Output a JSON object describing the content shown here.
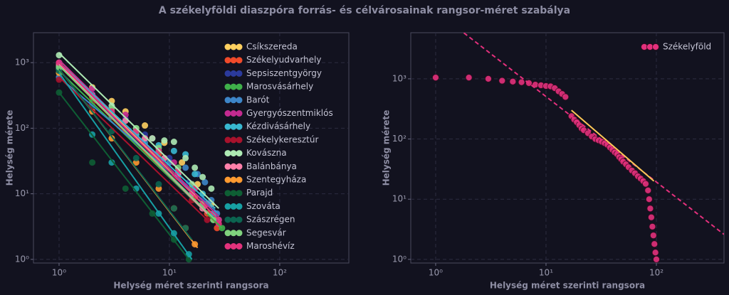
{
  "title": "A székelyföldi diaszpóra forrás- és célvárosainak rangsor-méret szabálya",
  "chart_data": [
    {
      "type": "scatter",
      "xlabel": "Helység méret szerinti rangsora",
      "ylabel": "Helység mérete",
      "log_x": true,
      "log_y": true,
      "grid": true,
      "legend": "upper right",
      "xlim": [
        0.586,
        423
      ],
      "ylim": [
        0.88,
        2860
      ],
      "xticks": [
        {
          "value": 1,
          "label": "10⁰"
        },
        {
          "value": 10,
          "label": "10¹"
        },
        {
          "value": 100,
          "label": "10²"
        }
      ],
      "yticks": [
        {
          "value": 1,
          "label": "10⁰"
        },
        {
          "value": 10,
          "label": "10¹"
        },
        {
          "value": 100,
          "label": "10²"
        },
        {
          "value": 1000,
          "label": "10³"
        }
      ],
      "series": [
        {
          "name": "Csíkszereda",
          "color": "#ffd060",
          "x": [
            1,
            2,
            3,
            4,
            6,
            9,
            13,
            18,
            24,
            28
          ],
          "values": [
            950,
            420,
            260,
            180,
            110,
            60,
            30,
            14,
            7,
            4
          ],
          "fit": {
            "x": [
              1,
              28
            ],
            "y": [
              1100,
              4
            ]
          }
        },
        {
          "name": "Székelyudvarhely",
          "color": "#f04a2a",
          "x": [
            1,
            2,
            3,
            5,
            8,
            12,
            17,
            22,
            27
          ],
          "values": [
            800,
            300,
            170,
            80,
            40,
            18,
            9,
            5,
            3
          ],
          "fit": {
            "x": [
              1,
              27
            ],
            "y": [
              900,
              3.5
            ]
          }
        },
        {
          "name": "Sepsiszentgyörgy",
          "color": "#2b3a9c",
          "x": [
            1,
            2,
            4,
            6,
            10,
            15,
            20,
            26
          ],
          "values": [
            900,
            330,
            140,
            80,
            35,
            15,
            8,
            4
          ],
          "fit": {
            "x": [
              1,
              26
            ],
            "y": [
              950,
              4
            ]
          }
        },
        {
          "name": "Marosvásárhely",
          "color": "#3fb04a",
          "x": [
            1,
            2,
            3,
            5,
            8,
            12,
            16,
            20,
            25,
            30
          ],
          "values": [
            700,
            250,
            160,
            85,
            45,
            22,
            12,
            7,
            4,
            3
          ],
          "fit": {
            "x": [
              1,
              30
            ],
            "y": [
              750,
              3
            ]
          }
        },
        {
          "name": "Barót",
          "color": "#3d86c8",
          "x": [
            1,
            3,
            6,
            10,
            14,
            18,
            21,
            24,
            27
          ],
          "values": [
            600,
            150,
            60,
            30,
            25,
            20,
            15,
            8,
            5
          ],
          "fit": {
            "x": [
              1,
              28
            ],
            "y": [
              600,
              5
            ]
          }
        },
        {
          "name": "Gyergyószentmiklós",
          "color": "#c42a90",
          "x": [
            1,
            2,
            4,
            7,
            11,
            16,
            22,
            28
          ],
          "values": [
            1000,
            400,
            160,
            70,
            30,
            14,
            7,
            4
          ],
          "fit": {
            "x": [
              1,
              28
            ],
            "y": [
              1100,
              4.5
            ]
          }
        },
        {
          "name": "Kézdivásárhely",
          "color": "#38b8d0",
          "x": [
            1,
            3,
            5,
            8,
            11,
            14,
            17,
            20,
            25
          ],
          "values": [
            850,
            160,
            80,
            55,
            45,
            40,
            20,
            10,
            5
          ],
          "fit": {
            "x": [
              1,
              26
            ],
            "y": [
              1000,
              6
            ]
          }
        },
        {
          "name": "Székelykeresztúr",
          "color": "#a8122c",
          "x": [
            1,
            2,
            4,
            7,
            11,
            16,
            22
          ],
          "values": [
            550,
            230,
            90,
            40,
            18,
            8,
            4
          ],
          "fit": {
            "x": [
              1,
              22
            ],
            "y": [
              600,
              4
            ]
          }
        },
        {
          "name": "Kovászna",
          "color": "#aeeab4",
          "x": [
            1,
            3,
            5,
            7,
            9,
            11,
            14,
            17,
            20,
            24
          ],
          "values": [
            1300,
            220,
            100,
            70,
            65,
            62,
            35,
            25,
            18,
            12
          ],
          "fit": {
            "x": [
              1,
              28
            ],
            "y": [
              1400,
              6
            ]
          }
        },
        {
          "name": "Balánbánya",
          "color": "#ff80aa",
          "x": [
            1,
            2,
            4,
            6,
            9,
            12,
            16,
            20
          ],
          "values": [
            900,
            320,
            130,
            70,
            35,
            20,
            10,
            6
          ],
          "fit": {
            "x": [
              1,
              22
            ],
            "y": [
              950,
              5
            ]
          }
        },
        {
          "name": "Szentegyháza",
          "color": "#ff9a30",
          "x": [
            1,
            2,
            3,
            5,
            8,
            11,
            14,
            17
          ],
          "values": [
            700,
            180,
            70,
            30,
            12,
            6,
            3,
            1.7
          ],
          "fit": {
            "x": [
              1,
              18
            ],
            "y": [
              800,
              1.5
            ]
          }
        },
        {
          "name": "Parajd",
          "color": "#0e5e34",
          "x": [
            1,
            2,
            4,
            7,
            11,
            15
          ],
          "values": [
            350,
            30,
            12,
            5,
            2,
            1
          ],
          "fit": {
            "x": [
              1,
              15
            ],
            "y": [
              350,
              1
            ]
          }
        },
        {
          "name": "Szováta",
          "color": "#17a0a4",
          "x": [
            1,
            2,
            3,
            5,
            8,
            11,
            15
          ],
          "values": [
            800,
            80,
            30,
            12,
            5,
            2.5,
            1.2
          ],
          "fit": {
            "x": [
              1,
              16
            ],
            "y": [
              700,
              1
            ]
          }
        },
        {
          "name": "Szászrégen",
          "color": "#0b6450",
          "x": [
            1,
            2,
            3,
            5,
            8,
            11,
            14
          ],
          "values": [
            750,
            220,
            90,
            35,
            14,
            6,
            3
          ],
          "fit": {
            "x": [
              1,
              16
            ],
            "y": [
              800,
              2
            ]
          }
        },
        {
          "name": "Segesvár",
          "color": "#80d27e",
          "x": [
            1,
            3,
            5,
            8,
            12,
            16,
            20,
            25
          ],
          "values": [
            850,
            200,
            100,
            50,
            25,
            14,
            7,
            4
          ],
          "fit": {
            "x": [
              1,
              26
            ],
            "y": [
              900,
              4
            ]
          }
        },
        {
          "name": "Maroshévíz",
          "color": "#e3327c",
          "x": [
            1,
            3,
            5,
            8,
            12,
            17,
            22,
            28
          ],
          "values": [
            1000,
            180,
            90,
            45,
            22,
            12,
            7,
            3.5
          ],
          "fit": {
            "x": [
              1,
              28
            ],
            "y": [
              1000,
              4
            ]
          }
        }
      ]
    },
    {
      "type": "scatter",
      "xlabel": "Helység méret szerinti rangsora",
      "ylabel": "Helység mérete",
      "log_x": true,
      "log_y": true,
      "grid": true,
      "legend": "upper right",
      "xlim": [
        0.595,
        410
      ],
      "ylim": [
        0.87,
        5840
      ],
      "xticks": [
        {
          "value": 1,
          "label": "10⁰"
        },
        {
          "value": 10,
          "label": "10¹"
        },
        {
          "value": 100,
          "label": "10²"
        }
      ],
      "yticks": [
        {
          "value": 1,
          "label": "10⁰"
        },
        {
          "value": 10,
          "label": "10¹"
        },
        {
          "value": 100,
          "label": "10²"
        },
        {
          "value": 1000,
          "label": "10³"
        }
      ],
      "series": [
        {
          "name": "Székelyföld",
          "color": "#e3307c",
          "x": [
            1,
            2,
            3,
            4,
            5,
            6,
            7,
            8,
            9,
            10,
            11,
            12,
            13,
            14,
            15,
            17,
            18,
            19,
            20,
            21,
            22,
            24,
            26,
            28,
            30,
            32,
            34,
            36,
            38,
            40,
            42,
            44,
            46,
            48,
            50,
            53,
            56,
            60,
            64,
            68,
            72,
            76,
            80,
            84,
            86,
            88,
            90,
            92,
            94,
            96,
            98,
            100
          ],
          "values": [
            1050,
            1050,
            1000,
            930,
            900,
            880,
            850,
            800,
            780,
            760,
            750,
            700,
            620,
            560,
            500,
            240,
            210,
            190,
            170,
            150,
            140,
            125,
            110,
            100,
            95,
            90,
            85,
            80,
            72,
            66,
            60,
            56,
            50,
            46,
            42,
            38,
            34,
            30,
            27,
            24,
            22,
            20,
            18,
            14,
            10,
            7,
            5,
            3.5,
            2.5,
            1.8,
            1.3,
            1.0
          ]
        }
      ],
      "lines": [
        {
          "x": [
            1.8,
            410
          ],
          "y": [
            5800,
            2.6
          ],
          "color": "#e3307c",
          "dash": true
        },
        {
          "x": [
            17,
            95
          ],
          "y": [
            300,
            20
          ],
          "color": "#ffc857",
          "dash": false
        }
      ]
    }
  ]
}
